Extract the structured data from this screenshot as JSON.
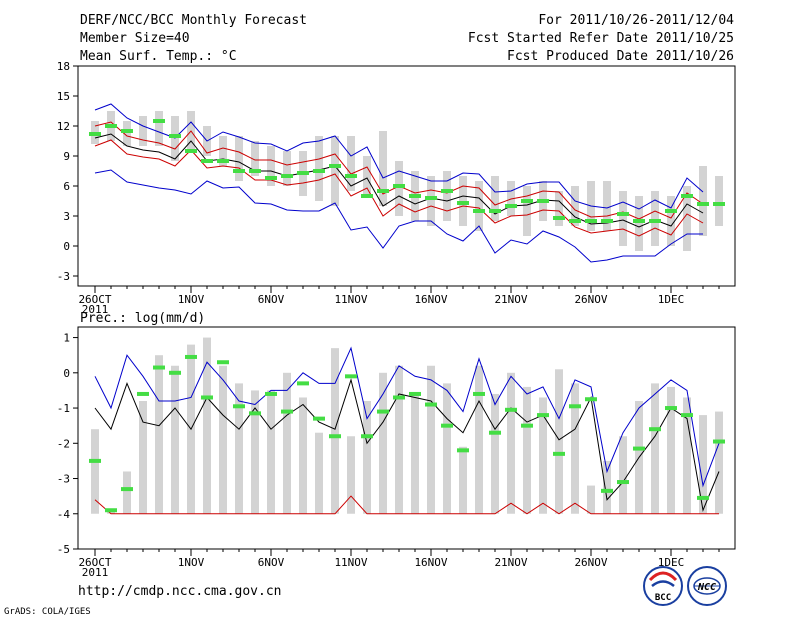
{
  "header": {
    "title": "DERF/NCC/BCC Monthly Forecast",
    "member_size": "Member Size=40",
    "variable": "Mean Surf. Temp.: °C",
    "period": "For 2011/10/26-2011/12/04",
    "refer_date": "Fcst Started Refer Date 2011/10/25",
    "produced_date": "Fcst Produced Date 2011/10/26"
  },
  "footer": {
    "url": "http://cmdp.ncc.cma.gov.cn",
    "grads_credit": "GrADS: COLA/IGES",
    "logo_bcc_text": "BCC",
    "logo_ncc_text": "NCC"
  },
  "x_axis": {
    "ticks": [
      {
        "day": 0,
        "label": "26OCT"
      },
      {
        "day": 6,
        "label": "1NOV"
      },
      {
        "day": 11,
        "label": "6NOV"
      },
      {
        "day": 16,
        "label": "11NOV"
      },
      {
        "day": 21,
        "label": "16NOV"
      },
      {
        "day": 26,
        "label": "21NOV"
      },
      {
        "day": 31,
        "label": "26NOV"
      },
      {
        "day": 36,
        "label": "1DEC"
      }
    ],
    "year_label": "2011"
  },
  "colors": {
    "box": "#d3d3d3",
    "obs": "#44dd44",
    "upper": "#0000cc",
    "lower": "#0000cc",
    "mean": "#000000",
    "p_red": "#cc0000",
    "axis": "#000000"
  },
  "chart_data": [
    {
      "type": "box-and-line",
      "title": "Mean Surf. Temp.: °C",
      "ylim": [
        -4,
        18
      ],
      "yticks": [
        -3,
        0,
        3,
        6,
        9,
        12,
        15,
        18
      ],
      "days": 40,
      "box_low": [
        10.2,
        10.5,
        10.0,
        10.0,
        10.0,
        8.5,
        9.5,
        9.0,
        8.0,
        6.5,
        7.0,
        6.0,
        6.0,
        5.0,
        4.5,
        4.0,
        5.5,
        5.0,
        4.0,
        3.0,
        2.5,
        2.0,
        2.5,
        2.0,
        1.5,
        2.5,
        3.0,
        1.0,
        2.5,
        2.0,
        2.0,
        1.5,
        1.5,
        0.0,
        -0.5,
        0.0,
        0.0,
        -0.5,
        1.0,
        2.0
      ],
      "box_high": [
        12.5,
        13.5,
        12.5,
        13.0,
        13.5,
        13.0,
        13.5,
        12.0,
        11.0,
        11.0,
        10.5,
        10.0,
        9.5,
        9.5,
        11.0,
        11.0,
        11.0,
        9.0,
        11.5,
        8.5,
        7.5,
        7.0,
        7.5,
        7.0,
        6.5,
        7.0,
        6.5,
        6.0,
        6.5,
        5.5,
        6.0,
        6.5,
        6.5,
        5.5,
        5.0,
        5.5,
        5.0,
        6.0,
        8.0,
        7.0
      ],
      "obs": [
        11.2,
        12.0,
        11.5,
        null,
        12.5,
        11.0,
        9.5,
        8.5,
        8.5,
        7.5,
        7.5,
        6.8,
        7.0,
        7.3,
        7.5,
        8.0,
        7.0,
        5.0,
        5.5,
        6.0,
        5.0,
        4.8,
        5.5,
        4.3,
        3.5,
        3.5,
        4.0,
        4.5,
        4.5,
        2.8,
        2.5,
        2.5,
        2.5,
        3.2,
        2.5,
        2.5,
        3.5,
        5.0,
        4.2,
        4.2
      ],
      "mean": [
        10.8,
        11.2,
        10.0,
        9.6,
        9.4,
        8.7,
        10.5,
        8.5,
        8.7,
        8.4,
        7.5,
        7.5,
        7.0,
        7.3,
        7.6,
        8.0,
        6.0,
        6.8,
        4.0,
        5.0,
        4.2,
        4.8,
        4.5,
        5.0,
        4.8,
        3.2,
        4.0,
        4.1,
        4.6,
        4.5,
        2.9,
        2.2,
        2.3,
        2.6,
        1.9,
        2.6,
        2.0,
        4.2,
        3.3,
        null
      ],
      "upper": [
        13.6,
        14.2,
        12.8,
        12.0,
        11.4,
        10.8,
        12.4,
        10.5,
        11.4,
        10.9,
        10.3,
        10.2,
        9.5,
        10.3,
        10.5,
        11.0,
        9.0,
        9.9,
        6.8,
        7.5,
        7.0,
        6.5,
        6.5,
        7.3,
        7.2,
        5.4,
        5.5,
        6.2,
        6.4,
        6.4,
        4.5,
        4.0,
        3.8,
        4.4,
        3.7,
        4.6,
        3.8,
        6.8,
        5.4,
        null
      ],
      "lower": [
        7.3,
        7.6,
        6.4,
        6.1,
        5.8,
        5.6,
        5.2,
        6.5,
        5.8,
        5.9,
        4.3,
        4.2,
        3.6,
        3.5,
        3.5,
        4.3,
        1.6,
        1.9,
        -0.2,
        2.0,
        2.5,
        2.5,
        1.2,
        0.5,
        2.0,
        -0.7,
        0.6,
        0.2,
        1.5,
        0.9,
        -0.1,
        -1.6,
        -1.4,
        -1.0,
        -1.0,
        -1.0,
        0.2,
        1.2,
        1.2,
        null
      ],
      "p_upper": [
        12.0,
        12.4,
        11.0,
        10.6,
        10.3,
        9.7,
        11.5,
        9.3,
        9.8,
        9.4,
        8.6,
        8.6,
        8.1,
        8.4,
        8.7,
        9.2,
        7.2,
        7.9,
        5.2,
        6.0,
        5.3,
        5.6,
        5.3,
        6.0,
        5.8,
        4.1,
        4.7,
        5.0,
        5.5,
        5.4,
        3.6,
        2.9,
        3.0,
        3.4,
        2.7,
        3.5,
        2.8,
        5.3,
        4.2,
        null
      ],
      "p_lower": [
        10.0,
        10.6,
        9.2,
        8.9,
        8.7,
        8.0,
        9.6,
        7.8,
        8.0,
        7.8,
        6.6,
        6.6,
        6.1,
        6.3,
        6.6,
        7.2,
        5.0,
        5.8,
        3.0,
        4.2,
        3.4,
        4.0,
        3.5,
        4.0,
        3.8,
        2.3,
        3.0,
        3.1,
        3.6,
        3.5,
        1.9,
        1.3,
        1.5,
        1.7,
        1.0,
        1.8,
        1.1,
        3.2,
        2.3,
        null
      ]
    },
    {
      "type": "box-and-line",
      "title": "Prec.: log(mm/d)",
      "ylim": [
        -5,
        1.3
      ],
      "yticks": [
        -5,
        -4,
        -3,
        -2,
        -1,
        0,
        1
      ],
      "days": 40,
      "box_low": [
        -4,
        -4,
        -4,
        -4,
        -4,
        -4,
        -4,
        -4,
        -4,
        -4,
        -4,
        -4,
        -4,
        -4,
        -4,
        -4,
        -4,
        -4,
        -4,
        -4,
        -4,
        -4,
        -4,
        -4,
        -4,
        -4,
        -4,
        -4,
        -4,
        -4,
        -4,
        -4,
        -4,
        -4,
        -4,
        -4,
        -4,
        -4,
        -4,
        -4
      ],
      "box_high": [
        -1.6,
        -3.9,
        -2.8,
        -0.8,
        0.5,
        0.2,
        0.8,
        1.0,
        0.2,
        -0.3,
        -0.5,
        -0.5,
        0.0,
        -0.7,
        -1.7,
        0.7,
        -1.8,
        -0.8,
        0.0,
        0.2,
        -0.6,
        0.2,
        -0.3,
        -2.1,
        0.2,
        -0.6,
        0.0,
        -0.4,
        -0.7,
        0.1,
        -0.3,
        -3.2,
        -2.5,
        -1.8,
        -0.8,
        -0.3,
        -0.4,
        -0.7,
        -1.2,
        -1.1
      ],
      "obs": [
        -2.5,
        -3.9,
        -3.3,
        -0.6,
        0.15,
        0.0,
        0.45,
        -0.7,
        0.3,
        -0.95,
        -1.15,
        -0.6,
        -1.1,
        -0.3,
        -1.3,
        -1.8,
        -0.1,
        -1.8,
        -1.1,
        -0.7,
        -0.6,
        -0.9,
        -1.5,
        -2.2,
        -0.6,
        -1.7,
        -1.05,
        -1.5,
        -1.2,
        -2.3,
        -0.95,
        -0.75,
        -3.35,
        -3.1,
        -2.15,
        -1.6,
        -1.0,
        -1.2,
        -3.55,
        -1.95
      ],
      "mean": [
        -1.0,
        -1.6,
        -0.3,
        -1.4,
        -1.5,
        -1.0,
        -1.6,
        -0.7,
        -1.2,
        -1.6,
        -1.0,
        -1.6,
        -1.2,
        -0.9,
        -1.4,
        -1.6,
        -0.2,
        -2.0,
        -1.4,
        -0.6,
        -0.7,
        -0.8,
        -1.3,
        -1.7,
        -0.8,
        -1.6,
        -1.0,
        -1.4,
        -1.2,
        -1.9,
        -1.6,
        -0.7,
        -3.6,
        -3.1,
        -2.4,
        -1.8,
        -1.0,
        -1.3,
        -3.9,
        -2.8
      ],
      "upper": [
        -0.1,
        -1.0,
        0.5,
        -0.1,
        -0.8,
        -0.8,
        -0.7,
        0.3,
        -0.2,
        -0.8,
        -0.9,
        -0.5,
        -0.5,
        0.0,
        -0.3,
        -0.3,
        0.7,
        -1.3,
        -0.6,
        0.2,
        -0.1,
        -0.2,
        -0.5,
        -1.1,
        0.4,
        -0.9,
        -0.1,
        -0.6,
        -0.4,
        -1.3,
        -0.2,
        -0.4,
        -2.8,
        -1.7,
        -1.0,
        -0.6,
        -0.2,
        -0.5,
        -3.2,
        -2.0
      ],
      "p_red": [
        -3.6,
        -4.0,
        -4.0,
        -4.0,
        -4.0,
        -4.0,
        -4.0,
        -4.0,
        -4.0,
        -4.0,
        -4.0,
        -4.0,
        -4.0,
        -4.0,
        -4.0,
        -4.0,
        -3.5,
        -4.0,
        -4.0,
        -4.0,
        -4.0,
        -4.0,
        -4.0,
        -4.0,
        -4.0,
        -4.0,
        -3.7,
        -4.0,
        -3.7,
        -4.0,
        -3.7,
        -4.0,
        -4.0,
        -4.0,
        -4.0,
        -4.0,
        -4.0,
        -4.0,
        -4.0,
        -4.0
      ]
    }
  ]
}
